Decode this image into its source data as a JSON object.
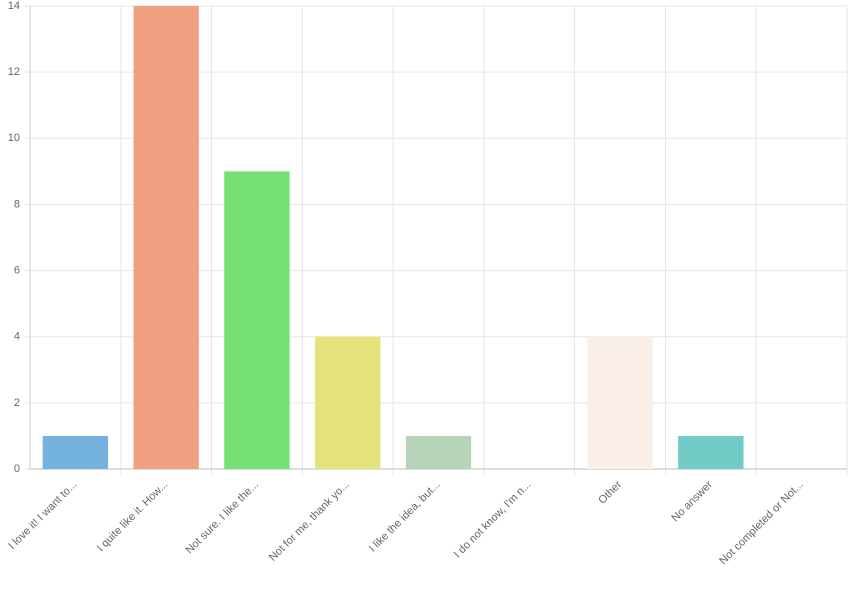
{
  "chart_data": {
    "type": "bar",
    "categories": [
      "I love it! I want to...",
      "I quite like it. How...",
      "Not sure. I like the...",
      "Not for me, thank yo...",
      "I like the idea, but...",
      "I do not know, I'm n...",
      "Other",
      "No answer",
      "Not completed or Not..."
    ],
    "values": [
      1,
      14,
      9,
      4,
      1,
      0,
      4,
      1,
      0
    ],
    "colors": [
      "#74b3e0",
      "#f0a080",
      "#76df76",
      "#e3e37a",
      "#b8d4b8",
      "#d0c8f0",
      "#f9eee8",
      "#72cbc6",
      "#cccccc"
    ],
    "ylim": [
      0,
      14
    ],
    "yticks": [
      0,
      2,
      4,
      6,
      8,
      10,
      12,
      14
    ],
    "grid": true
  }
}
